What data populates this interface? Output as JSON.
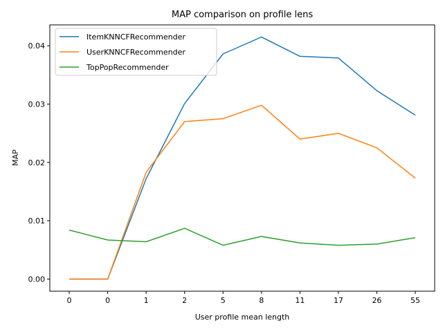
{
  "chart_data": {
    "type": "line",
    "title": "MAP comparison on profile lens",
    "xlabel": "User profile mean length",
    "ylabel": "MAP",
    "categories": [
      "0",
      "0",
      "1",
      "2",
      "5",
      "8",
      "11",
      "17",
      "26",
      "55"
    ],
    "ylim": [
      -0.00208,
      0.04358
    ],
    "yticks": [
      0.0,
      0.01,
      0.02,
      0.03,
      0.04
    ],
    "ytick_labels": [
      "0.00",
      "0.01",
      "0.02",
      "0.03",
      "0.04"
    ],
    "grid": false,
    "legend": "top-left",
    "series": [
      {
        "name": "ItemKNNCFRecommender",
        "color": "#1f77b4",
        "values": [
          0.0,
          0.0,
          0.0172,
          0.0301,
          0.0386,
          0.0415,
          0.0382,
          0.0379,
          0.0323,
          0.0281
        ]
      },
      {
        "name": "UserKNNCFRecommender",
        "color": "#ff7f0e",
        "values": [
          0.0,
          0.0,
          0.0183,
          0.027,
          0.0275,
          0.0298,
          0.024,
          0.025,
          0.0225,
          0.0173
        ]
      },
      {
        "name": "TopPopRecommender",
        "color": "#2ca02c",
        "values": [
          0.0084,
          0.0067,
          0.0064,
          0.0087,
          0.0058,
          0.0073,
          0.0062,
          0.0058,
          0.006,
          0.0071
        ]
      }
    ]
  }
}
